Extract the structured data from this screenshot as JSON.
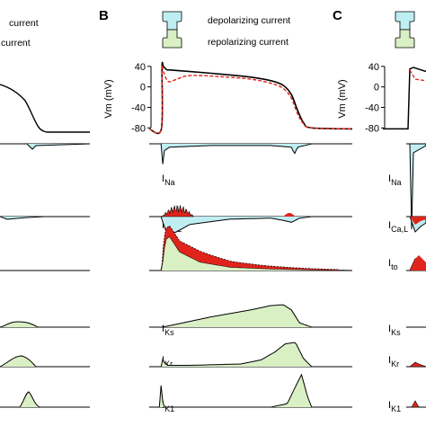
{
  "figure": {
    "panels": [
      {
        "letter": ""
      },
      {
        "letter": "B"
      },
      {
        "letter": "C"
      }
    ],
    "legend": {
      "depolarizing": {
        "label": "depolarizing current",
        "color": "#bfeef2"
      },
      "repolarizing": {
        "label": "repolarizing current",
        "color": "#d9efc4"
      },
      "panel_a_fragment_1": "current",
      "panel_a_fragment_2": "current"
    },
    "colors": {
      "control_trace": "#000000",
      "modified_trace": "#e0241b",
      "difference_fill": "#e0241b"
    }
  },
  "chart_data": [
    {
      "panel": "B",
      "type": "line",
      "title": "",
      "ylabel": "Vm (mV)",
      "xlabel": "",
      "yticks": [
        40,
        0,
        -40,
        -80
      ],
      "ylim": [
        -90,
        45
      ],
      "x_units": "fraction of action potential cycle",
      "series": [
        {
          "style": "solid",
          "x": [
            0.0,
            0.06,
            0.063,
            0.07,
            0.085,
            0.1,
            0.2,
            0.35,
            0.5,
            0.6,
            0.66,
            0.7,
            0.73,
            0.76,
            0.8,
            1.0
          ],
          "y": [
            -82,
            -82,
            38,
            40,
            34,
            33,
            30,
            25,
            19,
            12,
            3,
            -15,
            -45,
            -70,
            -80,
            -82
          ]
        },
        {
          "style": "dashed",
          "x": [
            0.0,
            0.06,
            0.063,
            0.07,
            0.085,
            0.1,
            0.13,
            0.2,
            0.35,
            0.5,
            0.6,
            0.66,
            0.7,
            0.73,
            0.76,
            0.8,
            1.0
          ],
          "y": [
            -82,
            -82,
            35,
            30,
            15,
            10,
            14,
            22,
            20,
            15,
            7,
            -3,
            -22,
            -52,
            -72,
            -80,
            -82
          ]
        }
      ]
    },
    {
      "panel": "B",
      "type": "area",
      "traces": [
        {
          "label": "I",
          "sub": "Na",
          "polarity": "depolarizing",
          "peak": -1.0,
          "x": [
            0.06,
            0.063,
            0.066,
            0.075,
            0.1,
            0.3,
            0.6,
            0.7,
            0.715,
            0.73,
            0.8
          ],
          "y": [
            0,
            -1.0,
            -0.25,
            -0.08,
            -0.04,
            -0.02,
            -0.02,
            -0.04,
            -0.12,
            -0.04,
            0
          ]
        },
        {
          "label": "I",
          "sub": "Ca,L",
          "polarity": "depolarizing",
          "x": [
            0.06,
            0.065,
            0.09,
            0.13,
            0.2,
            0.4,
            0.6,
            0.66,
            0.7,
            0.74,
            0.8
          ],
          "y": [
            0,
            -0.15,
            -0.55,
            -0.5,
            -0.25,
            -0.08,
            -0.05,
            -0.12,
            -0.18,
            -0.05,
            0
          ]
        },
        {
          "label": "I",
          "sub": "to",
          "polarity": "repolarizing",
          "x": [
            0.06,
            0.065,
            0.08,
            0.1,
            0.15,
            0.25,
            0.4,
            0.6,
            0.8,
            1.0
          ],
          "y": [
            0,
            0.2,
            0.9,
            1.0,
            0.55,
            0.25,
            0.1,
            0.05,
            0.02,
            0
          ]
        },
        {
          "label": "I",
          "sub": "Ks",
          "polarity": "repolarizing",
          "x": [
            0.06,
            0.1,
            0.3,
            0.5,
            0.6,
            0.66,
            0.7,
            0.74,
            0.8
          ],
          "y": [
            0,
            0.05,
            0.35,
            0.6,
            0.75,
            0.78,
            0.6,
            0.15,
            0
          ]
        },
        {
          "label": "I",
          "sub": "Kr",
          "polarity": "repolarizing",
          "x": [
            0.06,
            0.065,
            0.075,
            0.09,
            0.2,
            0.45,
            0.55,
            0.62,
            0.67,
            0.72,
            0.76,
            0.8
          ],
          "y": [
            0,
            0.3,
            0.15,
            0.05,
            0.05,
            0.1,
            0.25,
            0.55,
            0.85,
            0.9,
            0.3,
            0
          ]
        },
        {
          "label": "I",
          "sub": "K1",
          "polarity": "repolarizing",
          "x": [
            0.055,
            0.06,
            0.065,
            0.075,
            0.6,
            0.68,
            0.72,
            0.75,
            0.78,
            0.8
          ],
          "y": [
            0,
            0.95,
            0.2,
            0,
            0,
            0.1,
            0.6,
            0.95,
            0.3,
            0
          ]
        }
      ]
    }
  ]
}
